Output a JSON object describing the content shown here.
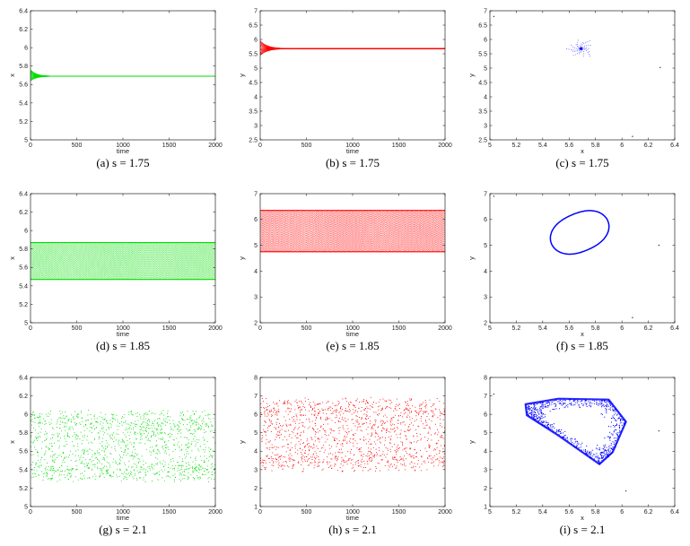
{
  "colors": {
    "x_series": "#00dd00",
    "y_series": "#ff0000",
    "phase": "#0000ff",
    "frame": "#000000"
  },
  "chart_data": [
    {
      "id": "a",
      "panel_type": "time_x",
      "type": "line",
      "caption": "(a)  s = 1.75",
      "xlabel": "time",
      "ylabel": "x",
      "xlim": [
        0,
        2000
      ],
      "ylim": [
        5,
        6.4
      ],
      "xticks": [
        "0",
        "500",
        "1000",
        "1500",
        "2000"
      ],
      "yticks": [
        "5",
        "5.2",
        "5.4",
        "5.6",
        "5.8",
        "6",
        "6.2",
        "6.4"
      ],
      "regime": "equilibrium",
      "equilibrium_value": 5.69,
      "transient_start_range": [
        5.64,
        5.76
      ],
      "settle_time": 200
    },
    {
      "id": "b",
      "panel_type": "time_y",
      "type": "line",
      "caption": "(b)  s = 1.75",
      "xlabel": "time",
      "ylabel": "y",
      "xlim": [
        0,
        2000
      ],
      "ylim": [
        2.5,
        7
      ],
      "xticks": [
        "0",
        "500",
        "1000",
        "1500",
        "2000"
      ],
      "yticks": [
        "2.5",
        "3",
        "3.5",
        "4",
        "4.5",
        "5",
        "5.5",
        "6",
        "6.5",
        "7"
      ],
      "regime": "equilibrium",
      "equilibrium_value": 5.68,
      "transient_start_range": [
        5.45,
        5.95
      ],
      "settle_time": 250
    },
    {
      "id": "c",
      "panel_type": "phase",
      "type": "scatter",
      "caption": "(c)  s = 1.75",
      "xlabel": "x",
      "ylabel": "y",
      "xlim": [
        5,
        6.4
      ],
      "ylim": [
        2.5,
        7
      ],
      "xticks": [
        "5",
        "5.2",
        "5.4",
        "5.6",
        "5.8",
        "6",
        "6.2",
        "6.4"
      ],
      "yticks": [
        "2.5",
        "3",
        "3.5",
        "4",
        "4.5",
        "5",
        "5.5",
        "6",
        "6.5",
        "7"
      ],
      "regime": "equilibrium",
      "equilibrium_point": [
        5.69,
        5.68
      ],
      "stray_points": [
        [
          5.03,
          6.8
        ],
        [
          6.29,
          5.02
        ],
        [
          6.08,
          2.62
        ]
      ]
    },
    {
      "id": "d",
      "panel_type": "time_x",
      "type": "line",
      "caption": "(d)  s = 1.85",
      "xlabel": "time",
      "ylabel": "x",
      "xlim": [
        0,
        2000
      ],
      "ylim": [
        5,
        6.4
      ],
      "xticks": [
        "0",
        "500",
        "1000",
        "1500",
        "2000"
      ],
      "yticks": [
        "5",
        "5.2",
        "5.4",
        "5.6",
        "5.8",
        "6",
        "6.2",
        "6.4"
      ],
      "regime": "periodic",
      "band": [
        5.47,
        5.87
      ]
    },
    {
      "id": "e",
      "panel_type": "time_y",
      "type": "line",
      "caption": "(e)  s = 1.85",
      "xlabel": "time",
      "ylabel": "y",
      "xlim": [
        0,
        2000
      ],
      "ylim": [
        2,
        7
      ],
      "xticks": [
        "0",
        "500",
        "1000",
        "1500",
        "2000"
      ],
      "yticks": [
        "2",
        "3",
        "4",
        "5",
        "6",
        "7"
      ],
      "regime": "periodic",
      "band": [
        4.75,
        6.35
      ]
    },
    {
      "id": "f",
      "panel_type": "phase",
      "type": "scatter",
      "caption": "(f)  s = 1.85",
      "xlabel": "x",
      "ylabel": "y",
      "xlim": [
        5,
        6.4
      ],
      "ylim": [
        2,
        7
      ],
      "xticks": [
        "5",
        "5.2",
        "5.4",
        "5.6",
        "5.8",
        "6",
        "6.2",
        "6.4"
      ],
      "yticks": [
        "2",
        "3",
        "4",
        "5",
        "6",
        "7"
      ],
      "regime": "limit_cycle",
      "center": [
        5.68,
        5.5
      ],
      "radius": [
        0.2,
        0.88
      ],
      "stray_points": [
        [
          5.03,
          6.9
        ],
        [
          6.28,
          5.0
        ],
        [
          6.08,
          2.2
        ]
      ]
    },
    {
      "id": "g",
      "panel_type": "time_x",
      "type": "scatter",
      "caption": "(g)  s = 2.1",
      "xlabel": "time",
      "ylabel": "x",
      "xlim": [
        0,
        2000
      ],
      "ylim": [
        5,
        6.4
      ],
      "xticks": [
        "0",
        "500",
        "1000",
        "1500",
        "2000"
      ],
      "yticks": [
        "5",
        "5.2",
        "5.4",
        "5.6",
        "5.8",
        "6",
        "6.2",
        "6.4"
      ],
      "regime": "chaotic",
      "band": [
        5.27,
        6.05
      ]
    },
    {
      "id": "h",
      "panel_type": "time_y",
      "type": "scatter",
      "caption": "(h)  s = 2.1",
      "xlabel": "time",
      "ylabel": "y",
      "xlim": [
        0,
        2000
      ],
      "ylim": [
        1,
        8
      ],
      "xticks": [
        "0",
        "500",
        "1000",
        "1500",
        "2000"
      ],
      "yticks": [
        "1",
        "2",
        "3",
        "4",
        "5",
        "6",
        "7",
        "8"
      ],
      "regime": "chaotic",
      "band": [
        2.9,
        6.95
      ]
    },
    {
      "id": "i",
      "panel_type": "phase",
      "type": "scatter",
      "caption": "(i)  s = 2.1",
      "xlabel": "x",
      "ylabel": "y",
      "xlim": [
        5,
        6.4
      ],
      "ylim": [
        1,
        8
      ],
      "xticks": [
        "5",
        "5.2",
        "5.4",
        "5.6",
        "5.8",
        "6",
        "6.2",
        "6.4"
      ],
      "yticks": [
        "1",
        "2",
        "3",
        "4",
        "5",
        "6",
        "7",
        "8"
      ],
      "regime": "chaotic_attractor",
      "hull": [
        [
          5.27,
          6.55
        ],
        [
          5.52,
          6.85
        ],
        [
          5.9,
          6.8
        ],
        [
          6.03,
          5.6
        ],
        [
          5.93,
          3.95
        ],
        [
          5.83,
          3.3
        ],
        [
          5.52,
          4.85
        ],
        [
          5.28,
          5.95
        ]
      ],
      "stray_points": [
        [
          5.03,
          7.1
        ],
        [
          6.28,
          5.1
        ],
        [
          6.03,
          1.85
        ]
      ]
    }
  ]
}
